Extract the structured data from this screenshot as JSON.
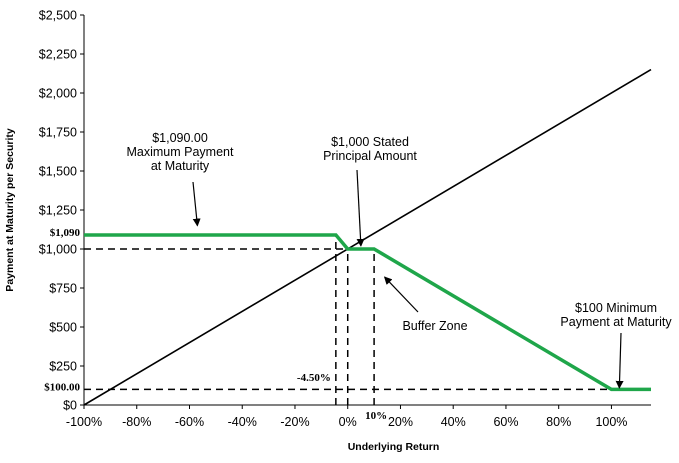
{
  "chart_data": {
    "type": "line",
    "xlabel": "Underlying  Return",
    "ylabel": "Payment at Maturity per Security",
    "xlim": [
      -100,
      115
    ],
    "ylim": [
      0,
      2500
    ],
    "x_ticks": [
      -100,
      -80,
      -60,
      -40,
      -20,
      0,
      20,
      40,
      60,
      80,
      100
    ],
    "x_tick_labels": [
      "-100%",
      "-80%",
      "-60%",
      "-40%",
      "-20%",
      "0%",
      "20%",
      "40%",
      "60%",
      "80%",
      "100%"
    ],
    "y_ticks": [
      0,
      250,
      500,
      750,
      1000,
      1250,
      1500,
      1750,
      2000,
      2250,
      2500
    ],
    "y_tick_labels": [
      "$0",
      "$250",
      "$500",
      "$750",
      "$1,000",
      "$1,250",
      "$1,500",
      "$1,750",
      "$2,000",
      "$2,250",
      "$2,500"
    ],
    "grid": false,
    "series": [
      {
        "color": "#000000",
        "x": [
          -100,
          115
        ],
        "y": [
          0,
          2150
        ]
      },
      {
        "color": "#1fa64a",
        "x": [
          -100,
          -4.5,
          0,
          10,
          100,
          115
        ],
        "y": [
          1090,
          1090,
          1000,
          1000,
          100,
          100
        ]
      }
    ],
    "reference_lines": [
      {
        "type": "h",
        "y": 1000,
        "x_from": -100,
        "x_to": 10
      },
      {
        "type": "h",
        "y": 100,
        "x_from": -100,
        "x_to": 100
      },
      {
        "type": "v",
        "x": -4.5,
        "y_from": 0,
        "y_to": 1090
      },
      {
        "type": "v",
        "x": 0,
        "y_from": 0,
        "y_to": 1000
      },
      {
        "type": "v",
        "x": 10,
        "y_from": 0,
        "y_to": 1000
      }
    ],
    "value_markers": [
      {
        "text": "$1,090",
        "y": 1090
      },
      {
        "text": "$100.00",
        "y": 100
      },
      {
        "text": "-4.50%",
        "x": -4.5
      },
      {
        "text": "10%",
        "x": 10
      }
    ],
    "annotations": [
      {
        "lines": [
          "$1,090.00",
          "Maximum Payment",
          "at Maturity"
        ],
        "arrow_to": [
          -57,
          1150
        ]
      },
      {
        "lines": [
          "$1,000 Stated",
          "Principal Amount"
        ],
        "arrow_to": [
          5,
          1020
        ]
      },
      {
        "lines": [
          "Buffer Zone"
        ],
        "arrow_to": [
          14,
          820
        ]
      },
      {
        "lines": [
          "$100 Minimum",
          "Payment at Maturity"
        ],
        "arrow_to": [
          103,
          110
        ]
      }
    ]
  }
}
